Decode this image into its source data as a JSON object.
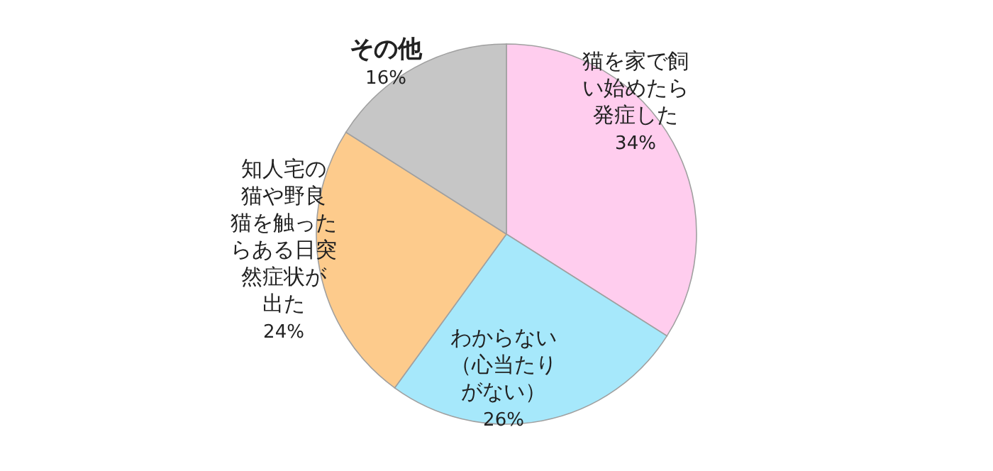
{
  "chart_data": {
    "type": "pie",
    "categories": [
      "猫を家で飼い始めたら発症した",
      "わからない（心当たりがない）",
      "知人宅の猫や野良猫を触ったらある日突然症状が出た",
      "その他"
    ],
    "values": [
      34,
      26,
      24,
      16
    ],
    "colors": [
      "#ffcdee",
      "#a6e8fb",
      "#fdcb8c",
      "#c6c6c6"
    ],
    "value_labels": [
      "34%",
      "26%",
      "24%",
      "16%"
    ]
  }
}
